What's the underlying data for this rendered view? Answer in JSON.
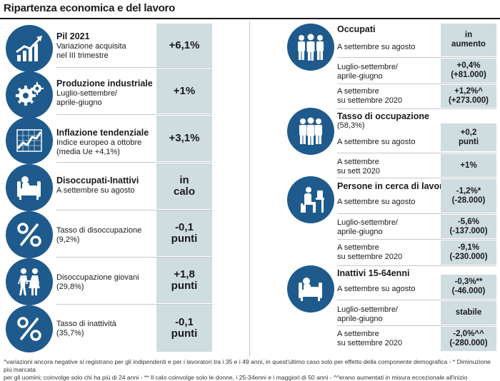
{
  "title": "Ripartenza economica e del lavoro",
  "colors": {
    "icon_bg": "#1f5a8c",
    "value_bg": "#cfdde1"
  },
  "left": [
    {
      "icon": "growth-chart-icon",
      "heading": "Pil 2021",
      "sub": [
        "Variazione acquisita",
        "nel III trimestre"
      ],
      "value": [
        "+6,1%"
      ]
    },
    {
      "icon": "gears-icon",
      "heading": "Produzione industriale",
      "sub": [
        "Luglio-settembre/",
        "aprile-giugno"
      ],
      "value": [
        "+1%"
      ]
    },
    {
      "icon": "line-chart-icon",
      "heading": "Inflazione tendenziale",
      "sub": [
        "Indice europeo a ottobre",
        "(media Ue +4,1%)"
      ],
      "value": [
        "+3,1%"
      ]
    },
    {
      "icon": "person-armchair-icon",
      "heading": "Disoccupati-Inattivi",
      "sub": [
        "A settembre su agosto"
      ],
      "value": [
        "in",
        "calo"
      ]
    },
    {
      "icon": "percent-icon",
      "heading": "",
      "sub": [
        "Tasso di disoccupazione",
        "(9,2%)"
      ],
      "value": [
        "-0,1",
        "punti"
      ]
    },
    {
      "icon": "walking-couple-icon",
      "heading": "",
      "sub": [
        "Disoccupazione giovani",
        "(29,8%)"
      ],
      "value": [
        "+1,8",
        "punti"
      ]
    },
    {
      "icon": "percent-icon",
      "heading": "",
      "sub": [
        "Tasso di inattività",
        "(35,7%)"
      ],
      "value": [
        "-0,1",
        "punti"
      ]
    }
  ],
  "right": {
    "occupati": {
      "heading": "Occupati",
      "rows": [
        {
          "label": [
            "A settembre su agosto"
          ],
          "value": [
            "in",
            "aumento"
          ]
        },
        {
          "label": [
            "Luglio-settembre/",
            "aprile-giugno"
          ],
          "value": [
            "+0,4%",
            "(+81.000)"
          ]
        },
        {
          "label": [
            "A settembre",
            "su settembre 2020"
          ],
          "value": [
            "+1,2%^",
            "(+273.000)"
          ]
        }
      ]
    },
    "tasso": {
      "heading": "Tasso di occupazione",
      "sub": "(58,3%)",
      "rows": [
        {
          "label": [
            "A settembre su agosto"
          ],
          "value": [
            "+0,2",
            "punti"
          ]
        },
        {
          "label": [
            "A settembre",
            "su sett 2020"
          ],
          "value": [
            "+1%"
          ]
        }
      ]
    },
    "persone": {
      "heading": "Persone in cerca di lavoro",
      "rows": [
        {
          "label": [
            "A settembre su agosto"
          ],
          "value": [
            "-1,2%*",
            "(-28.000)"
          ]
        },
        {
          "label": [
            "Luglio-settembre/",
            "aprile-giugno"
          ],
          "value": [
            "-5,6%",
            "(-137.000)"
          ]
        },
        {
          "label": [
            "A settembre",
            "su settembre 2020"
          ],
          "value": [
            "-9,1%",
            "(-230.000)"
          ]
        }
      ]
    },
    "inattivi": {
      "heading": "Inattivi 15-64enni",
      "rows": [
        {
          "label": [
            "A settembre su agosto"
          ],
          "value": [
            "-0,3%**",
            "(-46.000)"
          ]
        },
        {
          "label": [
            "Luglio-settembre/",
            "aprile-giugno"
          ],
          "value": [
            "stabile"
          ]
        },
        {
          "label": [
            "A settembre",
            "su settembre 2020"
          ],
          "value": [
            "-2,0%^^",
            "(-280.000)"
          ]
        }
      ]
    }
  },
  "footnote": [
    "^variazioni ancora negative si registrano per gli indipendenti e per i lavoratori tra i 35 e i 49 anni, in quest'ultimo caso solo per effetto della componente demografica - * Diminuzione più marcata",
    "per gli uomini; coinvolge solo chi ha più di 24 anni - ** Il calo coinvolge solo le donne, i 25-34enni e i maggiori di 50 anni - ^^erano aumentati in misura eccezionale all'inizio dell'emergenza sanitaria"
  ]
}
